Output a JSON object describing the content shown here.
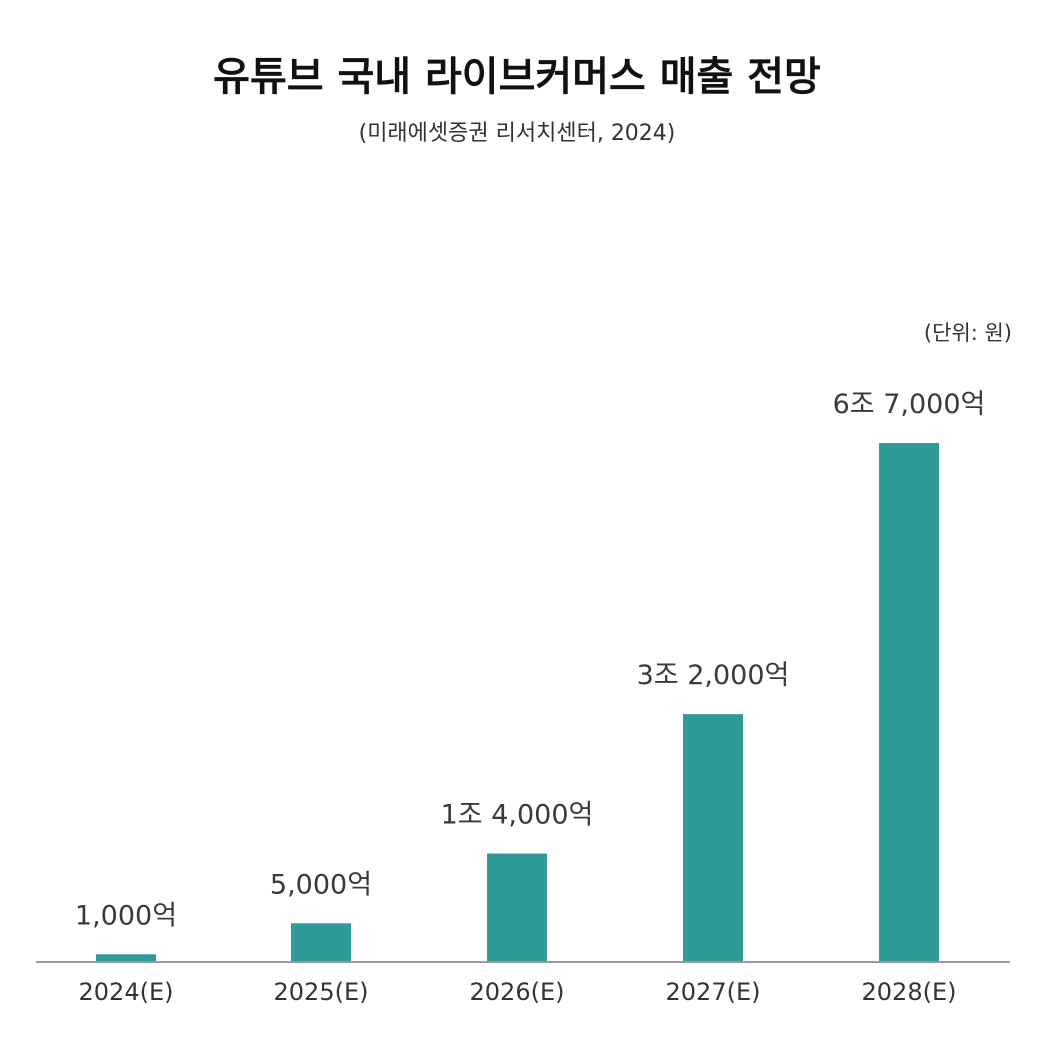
{
  "chart_data": {
    "type": "bar",
    "title": "유튜브 국내 라이브커머스 매출 전망",
    "subtitle": "(미래에셋증권 리서치센터, 2024)",
    "unit_label": "(단위: 원)",
    "categories": [
      "2024(E)",
      "2025(E)",
      "2026(E)",
      "2027(E)",
      "2028(E)"
    ],
    "values": [
      1000,
      5000,
      14000,
      32000,
      67000
    ],
    "data_labels": [
      "1,000억",
      "5,000억",
      "1조 4,000억",
      "3조 2,000억",
      "6조 7,000억"
    ],
    "value_unit": "억 원",
    "ylim": [
      0,
      67000
    ],
    "bar_color": "#2e9b98",
    "axis_color": "#9a9a9a",
    "grid": false,
    "legend": "none"
  }
}
